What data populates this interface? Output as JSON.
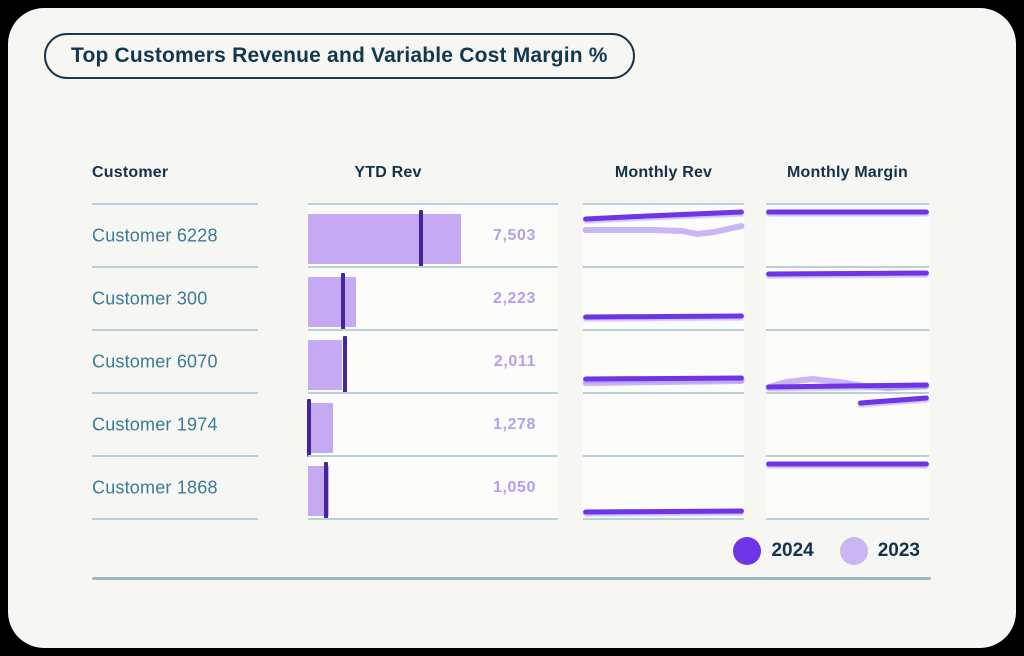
{
  "title": "Top Customers Revenue and Variable Cost Margin %",
  "columns": {
    "customer": "Customer",
    "ytd_rev": "YTD Rev",
    "monthly_rev": "Monthly Rev",
    "monthly_margin": "Monthly Margin"
  },
  "legend": [
    {
      "label": "2024",
      "color": "#6d35e6"
    },
    {
      "label": "2023",
      "color": "#c9b6f2"
    }
  ],
  "colors": {
    "series_2024": "#6d35e6",
    "series_2023": "#c9b6f2",
    "bar_fill": "#c5aaf3",
    "bar_tick": "#452598",
    "value_text": "#b4a0e8",
    "customer_text": "#3c7b95",
    "heading_text": "#15324a",
    "divider": "#bad0d8",
    "bottom_rule": "#9db7c4",
    "card_bg": "#f6f6f3",
    "page_bg": "#000000"
  },
  "chart_data": {
    "type": "table",
    "title": "Top Customers Revenue and Variable Cost Margin %",
    "columns": [
      "Customer",
      "YTD Rev",
      "Monthly Rev",
      "Monthly Margin"
    ],
    "legend_years": [
      "2024",
      "2023"
    ],
    "rows": [
      {
        "customer": "Customer 6228",
        "ytd_rev": 7503,
        "ytd_rev_label": "7,503",
        "bar_frac": 0.61,
        "tick_frac": 0.45,
        "monthly_rev": {
          "y2024": [
            [
              1,
              14
            ],
            [
              40,
              11
            ],
            [
              99,
              7
            ]
          ],
          "y2023": [
            [
              1,
              25
            ],
            [
              45,
              25
            ],
            [
              62,
              26
            ],
            [
              71,
              29
            ],
            [
              82,
              27
            ],
            [
              99,
              21
            ]
          ]
        },
        "monthly_margin": {
          "y2024": [
            [
              1,
              7
            ],
            [
              99,
              7
            ]
          ]
        }
      },
      {
        "customer": "Customer 300",
        "ytd_rev": 2223,
        "ytd_rev_label": "2,223",
        "bar_frac": 0.19,
        "tick_frac": 0.14,
        "monthly_rev": {
          "y2024": [
            [
              1,
              49
            ],
            [
              99,
              48
            ]
          ]
        },
        "monthly_margin": {
          "y2024": [
            [
              1,
              6
            ],
            [
              99,
              5
            ]
          ]
        }
      },
      {
        "customer": "Customer 6070",
        "ytd_rev": 2011,
        "ytd_rev_label": "2,011",
        "bar_frac": 0.135,
        "tick_frac": 0.148,
        "monthly_rev": {
          "y2024": [
            [
              1,
              48
            ],
            [
              99,
              47
            ]
          ],
          "y2023": [
            [
              1,
              52
            ],
            [
              99,
              50
            ]
          ]
        },
        "monthly_margin": {
          "y2024": [
            [
              1,
              56
            ],
            [
              99,
              54
            ]
          ],
          "y2023": [
            [
              1,
              56
            ],
            [
              12,
              51
            ],
            [
              28,
              48
            ],
            [
              45,
              51
            ],
            [
              60,
              55
            ],
            [
              75,
              57
            ],
            [
              99,
              55
            ]
          ]
        }
      },
      {
        "customer": "Customer 1974",
        "ytd_rev": 1278,
        "ytd_rev_label": "1,278",
        "bar_frac": 0.1,
        "tick_frac": 0.004,
        "monthly_rev": {},
        "monthly_margin": {
          "y2024": [
            [
              58,
              9
            ],
            [
              99,
              4
            ]
          ]
        }
      },
      {
        "customer": "Customer 1868",
        "ytd_rev": 1050,
        "ytd_rev_label": "1,050",
        "bar_frac": 0.082,
        "tick_frac": 0.072,
        "monthly_rev": {
          "y2024": [
            [
              1,
              55
            ],
            [
              99,
              54
            ]
          ]
        },
        "monthly_margin": {
          "y2024": [
            [
              1,
              7
            ],
            [
              99,
              7
            ]
          ]
        }
      }
    ]
  }
}
